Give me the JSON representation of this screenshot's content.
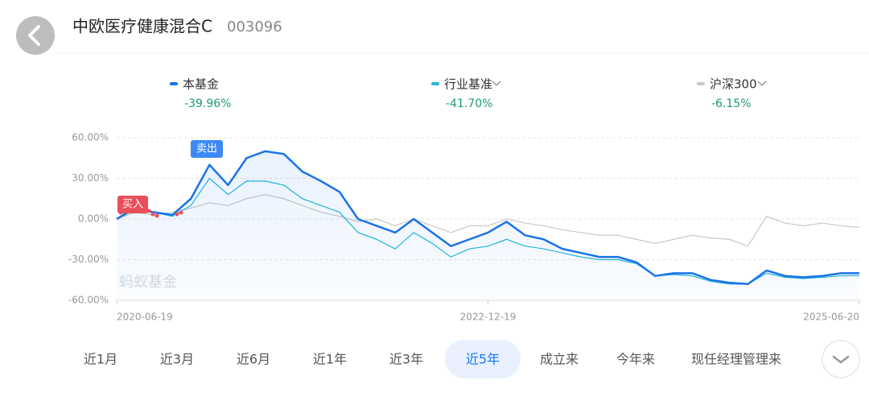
{
  "header": {
    "title": "中欧医疗健康混合C",
    "code": "003096"
  },
  "chart_data": {
    "type": "line",
    "categories": [
      "2020-06-19",
      null,
      null,
      null,
      null,
      null,
      null,
      null,
      null,
      null,
      null,
      null,
      null,
      null,
      null,
      null,
      null,
      null,
      null,
      null,
      "2022-12-19",
      null,
      null,
      null,
      null,
      null,
      null,
      null,
      null,
      null,
      null,
      null,
      null,
      null,
      null,
      null,
      null,
      null,
      null,
      null,
      "2025-06-20"
    ],
    "series": [
      {
        "name": "本基金",
        "change": "-39.96%",
        "color": "#1a73e8",
        "values": [
          0,
          8,
          5,
          3,
          15,
          40,
          25,
          45,
          50,
          48,
          35,
          28,
          20,
          0,
          -5,
          -10,
          0,
          -10,
          -20,
          -15,
          -10,
          -2,
          -12,
          -15,
          -22,
          -25,
          -28,
          -28,
          -32,
          -42,
          -40,
          -40,
          -45,
          -47,
          -48,
          -38,
          -42,
          -43,
          -42,
          -40,
          -39.96
        ]
      },
      {
        "name": "行业基准",
        "change": "-41.70%",
        "color": "#1fb8d8",
        "values": [
          0,
          10,
          5,
          2,
          10,
          30,
          18,
          28,
          28,
          25,
          15,
          10,
          5,
          -10,
          -15,
          -22,
          -10,
          -18,
          -28,
          -22,
          -20,
          -15,
          -20,
          -22,
          -25,
          -28,
          -30,
          -30,
          -33,
          -42,
          -41,
          -42,
          -46,
          -48,
          -48,
          -40,
          -43,
          -44,
          -43,
          -42,
          -41.7
        ]
      },
      {
        "name": "沪深300",
        "change": "-6.15%",
        "color": "#c8c8c8",
        "values": [
          0,
          5,
          3,
          5,
          8,
          12,
          10,
          15,
          18,
          15,
          10,
          5,
          2,
          -2,
          0,
          -5,
          0,
          -5,
          -10,
          -5,
          -5,
          0,
          -3,
          -5,
          -8,
          -10,
          -12,
          -12,
          -15,
          -18,
          -15,
          -12,
          -14,
          -15,
          -20,
          2,
          -3,
          -5,
          -3,
          -5,
          -6.15
        ]
      }
    ],
    "ylim": [
      -60,
      60
    ],
    "yticks": [
      {
        "value": 60,
        "label": "60.00%"
      },
      {
        "value": 30,
        "label": "30.00%"
      },
      {
        "value": 0,
        "label": "0.00%"
      },
      {
        "value": -30,
        "label": "-30.00%"
      },
      {
        "value": -60,
        "label": "-60.00%"
      }
    ],
    "grid": true,
    "annotations": [
      "买入",
      "卖出"
    ],
    "watermark": "蚂蚁基金"
  },
  "tabs": [
    "近1月",
    "近3月",
    "近6月",
    "近1年",
    "近3年",
    "近5年",
    "成立来",
    "今年来",
    "现任经理管理来"
  ],
  "selected_tab": 5
}
